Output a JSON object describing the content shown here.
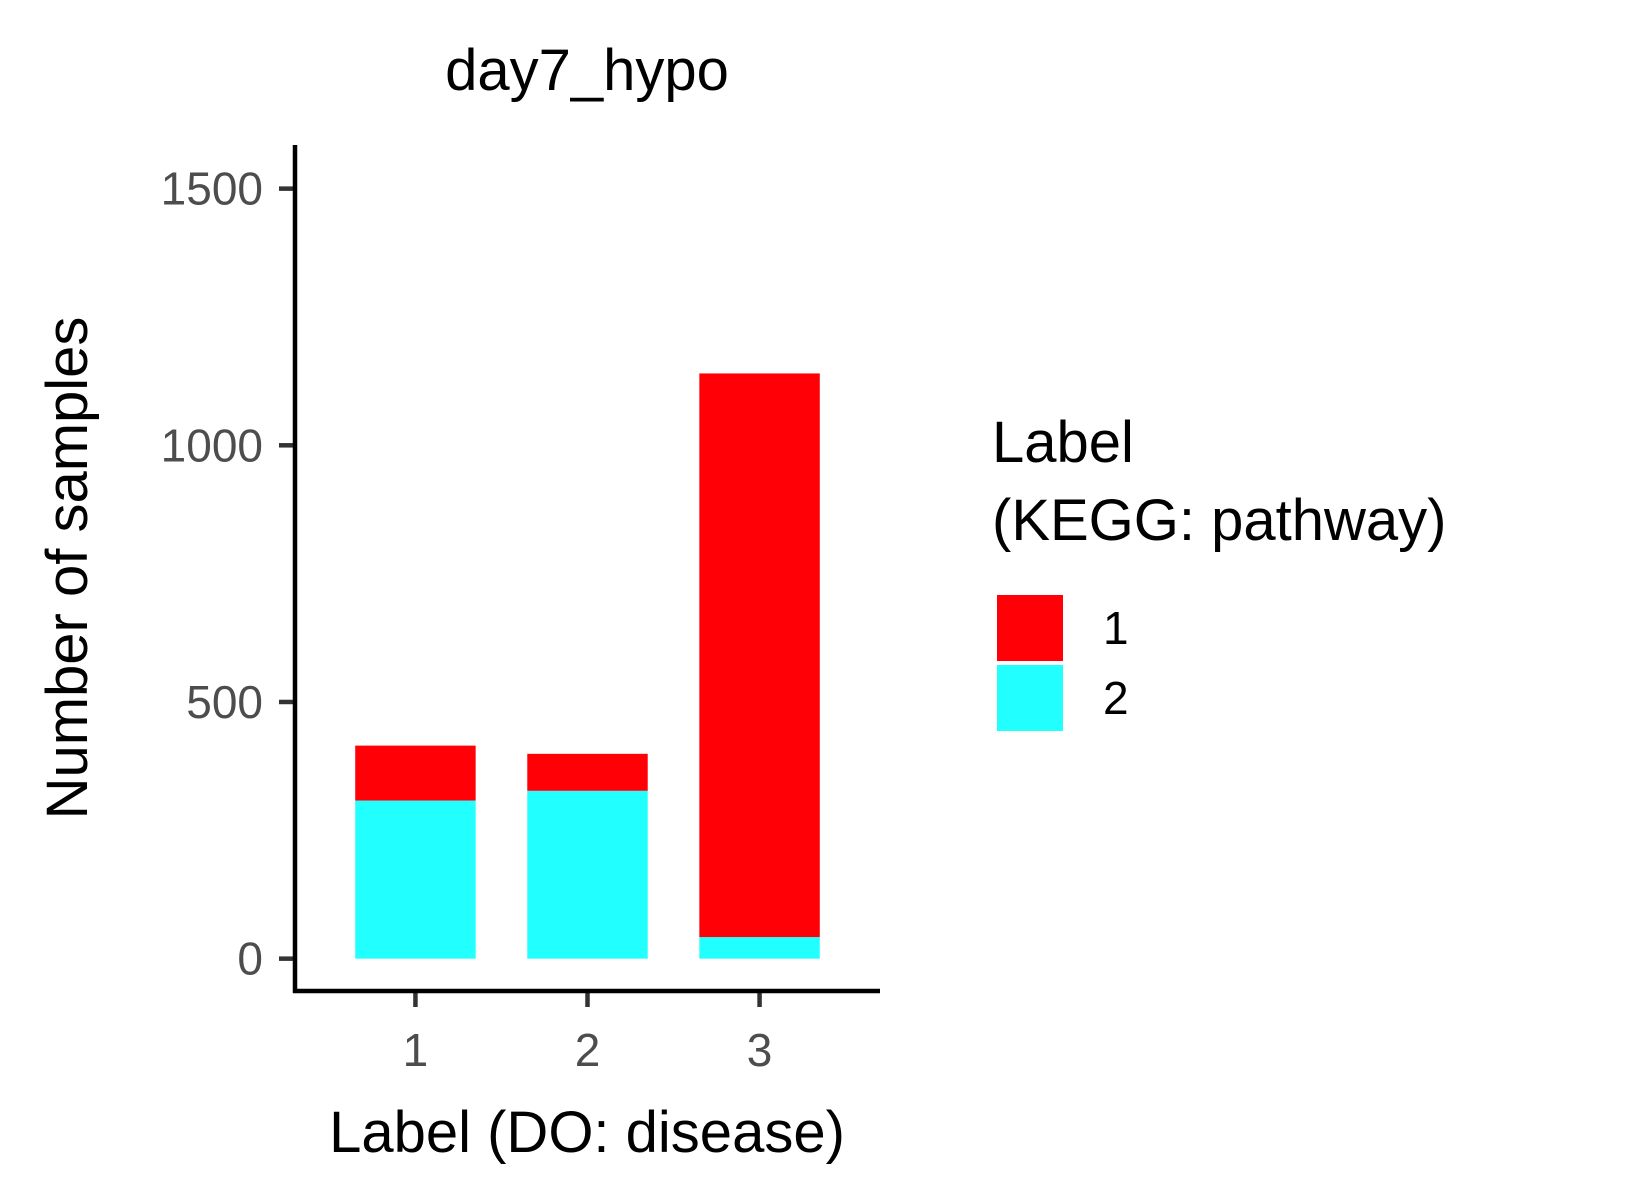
{
  "chart_data": {
    "type": "bar",
    "stacked": true,
    "title": "day7_hypo",
    "xlabel": "Label (DO: disease)",
    "ylabel": "Number of samples",
    "categories": [
      "1",
      "2",
      "3"
    ],
    "ylim": [
      -63,
      1585
    ],
    "yticks": [
      0,
      500,
      1000,
      1500
    ],
    "series": [
      {
        "name": "2",
        "color": "#22FFFF",
        "values": [
          308,
          327,
          42
        ]
      },
      {
        "name": "1",
        "color": "#FF0007",
        "values": [
          107,
          72,
          1098
        ]
      }
    ],
    "legend": {
      "title_lines": [
        "Label",
        "(KEGG: pathway)"
      ],
      "entries": [
        {
          "label": "1",
          "color": "#FF0007"
        },
        {
          "label": "2",
          "color": "#22FFFF"
        }
      ],
      "position": "right"
    },
    "grid": false
  }
}
